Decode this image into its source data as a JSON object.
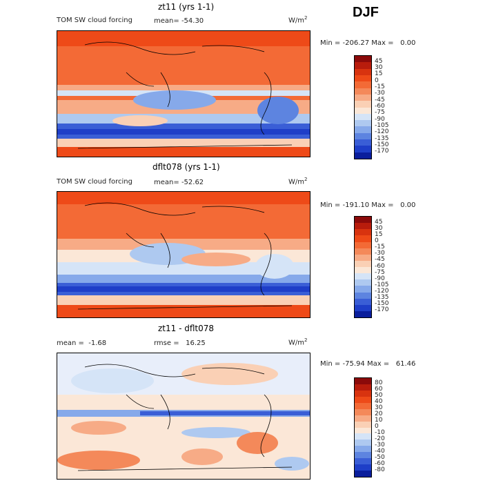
{
  "season": "DJF",
  "units": "W/m",
  "units_exp": "2",
  "panels": [
    {
      "title": "zt11 (yrs 1-1)",
      "left_label": "TOM SW cloud forcing",
      "stat_label": "mean=",
      "stat_value": "-54.30",
      "min_label": "Min =",
      "min_value": "-206.27",
      "max_label": "Max =",
      "max_value": "0.00"
    },
    {
      "title": "dflt078 (yrs 1-1)",
      "left_label": "TOM SW cloud forcing",
      "stat_label": "mean=",
      "stat_value": "-52.62",
      "min_label": "Min =",
      "min_value": "-191.10",
      "max_label": "Max =",
      "max_value": "0.00"
    },
    {
      "title": "zt11 - dflt078",
      "left_label": "mean =",
      "left_value": "-1.68",
      "stat_label": "rmse =",
      "stat_value": "16.25",
      "min_label": "Min =",
      "min_value": "-75.94",
      "max_label": "Max =",
      "max_value": "61.46"
    }
  ],
  "chart_data": [
    {
      "type": "heatmap",
      "title": "zt11 (yrs 1-1)",
      "variable": "TOM SW cloud forcing",
      "mean": -54.3,
      "min": -206.27,
      "max": 0.0,
      "colorbar_levels": [
        "45",
        "30",
        "15",
        "0",
        "-15",
        "-30",
        "-45",
        "-60",
        "-75",
        "-90",
        "-105",
        "-120",
        "-135",
        "-150",
        "-170"
      ],
      "colorbar_colors": [
        "#8b0a0a",
        "#b81c0c",
        "#d8330f",
        "#ee4a18",
        "#f36a36",
        "#f4895a",
        "#f7ab86",
        "#fad0b5",
        "#fbe7d7",
        "#d5e4f7",
        "#aec9f0",
        "#86a9ea",
        "#5d84e0",
        "#3a5ed6",
        "#1e3ec8",
        "#0a1e9c"
      ]
    },
    {
      "type": "heatmap",
      "title": "dflt078 (yrs 1-1)",
      "variable": "TOM SW cloud forcing",
      "mean": -52.62,
      "min": -191.1,
      "max": 0.0,
      "colorbar_levels": [
        "45",
        "30",
        "15",
        "0",
        "-15",
        "-30",
        "-45",
        "-60",
        "-75",
        "-90",
        "-105",
        "-120",
        "-135",
        "-150",
        "-170"
      ],
      "colorbar_colors": [
        "#8b0a0a",
        "#b81c0c",
        "#d8330f",
        "#ee4a18",
        "#f36a36",
        "#f4895a",
        "#f7ab86",
        "#fad0b5",
        "#fbe7d7",
        "#d5e4f7",
        "#aec9f0",
        "#86a9ea",
        "#5d84e0",
        "#3a5ed6",
        "#1e3ec8",
        "#0a1e9c"
      ]
    },
    {
      "type": "heatmap",
      "title": "zt11 - dflt078",
      "mean": -1.68,
      "rmse": 16.25,
      "min": -75.94,
      "max": 61.46,
      "colorbar_levels": [
        "80",
        "60",
        "50",
        "40",
        "30",
        "20",
        "10",
        "0",
        "-10",
        "-20",
        "-30",
        "-40",
        "-50",
        "-60",
        "-80"
      ],
      "colorbar_colors": [
        "#8b0a0a",
        "#b81c0c",
        "#d8330f",
        "#ee4a18",
        "#f36a36",
        "#f4895a",
        "#f7ab86",
        "#fad0b5",
        "#fbe7d7",
        "#d5e4f7",
        "#aec9f0",
        "#86a9ea",
        "#5d84e0",
        "#3a5ed6",
        "#1e3ec8",
        "#0a1e9c"
      ]
    }
  ]
}
